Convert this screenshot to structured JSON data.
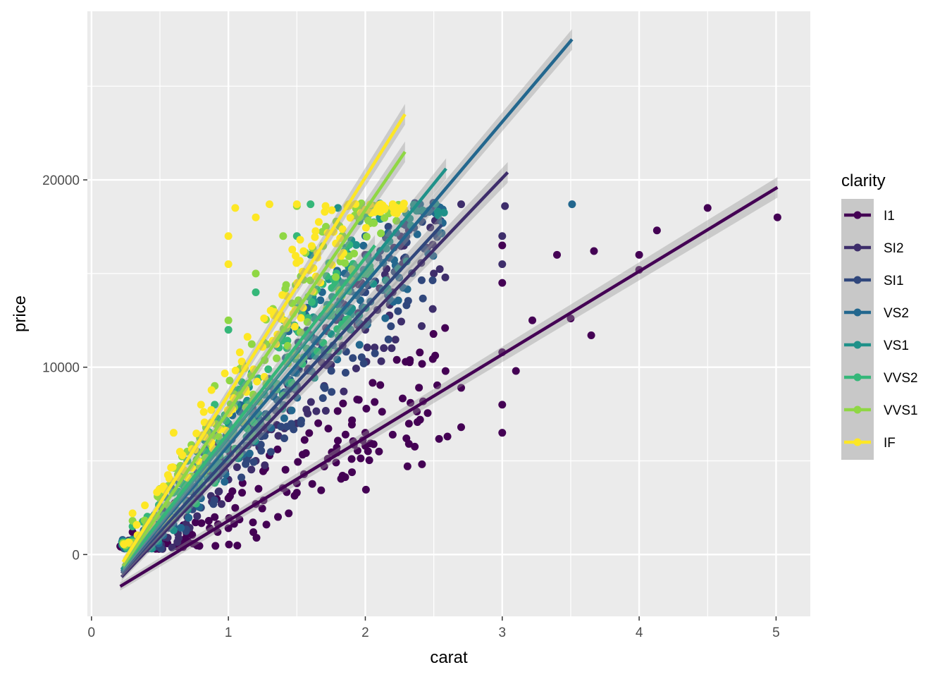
{
  "chart_data": {
    "type": "scatter",
    "title": "",
    "xlabel": "carat",
    "ylabel": "price",
    "xlim": [
      -0.03,
      5.25
    ],
    "ylim": [
      -3300,
      29000
    ],
    "x_ticks": [
      0,
      1,
      2,
      3,
      4,
      5
    ],
    "y_ticks": [
      0,
      10000,
      20000
    ],
    "x_tick_labels": [
      "0",
      "1",
      "2",
      "3",
      "4",
      "5"
    ],
    "y_tick_labels": [
      "0",
      "10000",
      "20000"
    ],
    "grid": true,
    "legend": {
      "title": "clarity",
      "position": "right"
    },
    "series": [
      {
        "name": "I1",
        "color": "#440154",
        "fit": {
          "x": [
            0.21,
            5.01
          ],
          "y": [
            -1700,
            19600
          ]
        },
        "points": [
          [
            0.3,
            1200
          ],
          [
            0.5,
            700
          ],
          [
            0.7,
            1200
          ],
          [
            0.9,
            2000
          ],
          [
            1.0,
            3000
          ],
          [
            1.1,
            3300
          ],
          [
            1.2,
            2700
          ],
          [
            1.5,
            3300
          ],
          [
            1.5,
            3800
          ],
          [
            1.7,
            4700
          ],
          [
            1.9,
            5100
          ],
          [
            2.0,
            5800
          ],
          [
            2.0,
            6500
          ],
          [
            2.1,
            5500
          ],
          [
            2.2,
            6400
          ],
          [
            2.3,
            6200
          ],
          [
            2.4,
            7200
          ],
          [
            2.6,
            6300
          ],
          [
            2.7,
            6800
          ],
          [
            2.7,
            8900
          ],
          [
            3.0,
            6500
          ],
          [
            3.0,
            8000
          ],
          [
            3.0,
            10800
          ],
          [
            3.0,
            14500
          ],
          [
            3.0,
            16500
          ],
          [
            3.1,
            9800
          ],
          [
            3.22,
            12500
          ],
          [
            3.4,
            16000
          ],
          [
            3.5,
            12600
          ],
          [
            3.65,
            11700
          ],
          [
            3.67,
            16200
          ],
          [
            4.0,
            15200
          ],
          [
            4.0,
            16000
          ],
          [
            4.13,
            17300
          ],
          [
            4.5,
            18500
          ],
          [
            5.01,
            18000
          ]
        ]
      },
      {
        "name": "SI2",
        "color": "#3e2e6b",
        "fit": {
          "x": [
            0.22,
            3.04
          ],
          "y": [
            -1200,
            20400
          ]
        },
        "points": [
          [
            0.3,
            500
          ],
          [
            0.5,
            1000
          ],
          [
            0.7,
            2000
          ],
          [
            1.0,
            4000
          ],
          [
            1.2,
            5000
          ],
          [
            1.5,
            7000
          ],
          [
            1.7,
            9000
          ],
          [
            2.0,
            12000
          ],
          [
            2.0,
            16000
          ],
          [
            2.2,
            14000
          ],
          [
            2.5,
            15000
          ],
          [
            2.7,
            18700
          ],
          [
            3.0,
            15500
          ],
          [
            3.0,
            17000
          ],
          [
            3.02,
            18600
          ]
        ]
      },
      {
        "name": "SI1",
        "color": "#30477c",
        "fit": {
          "x": [
            0.22,
            2.56
          ],
          "y": [
            -1000,
            17600
          ]
        },
        "points": [
          [
            0.3,
            600
          ],
          [
            0.6,
            1500
          ],
          [
            0.8,
            2500
          ],
          [
            1.0,
            5000
          ],
          [
            1.2,
            6000
          ],
          [
            1.5,
            9000
          ],
          [
            1.7,
            11000
          ],
          [
            2.0,
            14000
          ],
          [
            2.3,
            17000
          ],
          [
            2.5,
            18500
          ]
        ]
      },
      {
        "name": "VS2",
        "color": "#23678e",
        "fit": {
          "x": [
            0.22,
            3.51
          ],
          "y": [
            -900,
            27500
          ]
        },
        "points": [
          [
            0.3,
            700
          ],
          [
            0.5,
            1500
          ],
          [
            0.8,
            3000
          ],
          [
            1.0,
            6000
          ],
          [
            1.3,
            9000
          ],
          [
            1.5,
            12000
          ],
          [
            1.8,
            15000
          ],
          [
            2.0,
            17000
          ],
          [
            2.4,
            18700
          ],
          [
            3.51,
            18700
          ]
        ]
      },
      {
        "name": "VS1",
        "color": "#1f9189",
        "fit": {
          "x": [
            0.22,
            2.59
          ],
          "y": [
            -800,
            20600
          ]
        },
        "points": [
          [
            0.3,
            800
          ],
          [
            0.6,
            2000
          ],
          [
            0.9,
            4000
          ],
          [
            1.0,
            7000
          ],
          [
            1.5,
            12000
          ],
          [
            1.6,
            16000
          ],
          [
            1.8,
            18500
          ],
          [
            2.2,
            18600
          ]
        ]
      },
      {
        "name": "VVS2",
        "color": "#35b779",
        "fit": {
          "x": [
            0.23,
            2.07
          ],
          "y": [
            -700,
            16500
          ]
        },
        "points": [
          [
            0.3,
            1500
          ],
          [
            0.5,
            3500
          ],
          [
            0.7,
            5000
          ],
          [
            0.9,
            8000
          ],
          [
            1.0,
            12000
          ],
          [
            1.2,
            14000
          ],
          [
            1.5,
            17000
          ],
          [
            1.6,
            18700
          ]
        ]
      },
      {
        "name": "VVS1",
        "color": "#8fd744",
        "fit": {
          "x": [
            0.23,
            2.29
          ],
          "y": [
            -600,
            21500
          ]
        },
        "points": [
          [
            0.3,
            1800
          ],
          [
            0.5,
            3000
          ],
          [
            0.7,
            5500
          ],
          [
            0.9,
            9000
          ],
          [
            1.0,
            12500
          ],
          [
            1.2,
            15000
          ],
          [
            1.4,
            17000
          ],
          [
            1.5,
            18600
          ]
        ]
      },
      {
        "name": "IF",
        "color": "#fde725",
        "fit": {
          "x": [
            0.23,
            2.29
          ],
          "y": [
            -400,
            23500
          ]
        },
        "points": [
          [
            0.3,
            2200
          ],
          [
            0.6,
            6500
          ],
          [
            0.8,
            8000
          ],
          [
            1.0,
            15500
          ],
          [
            1.0,
            17000
          ],
          [
            1.05,
            18500
          ],
          [
            1.2,
            18000
          ],
          [
            1.3,
            18700
          ],
          [
            1.5,
            18700
          ],
          [
            2.2,
            18700
          ]
        ]
      }
    ]
  }
}
